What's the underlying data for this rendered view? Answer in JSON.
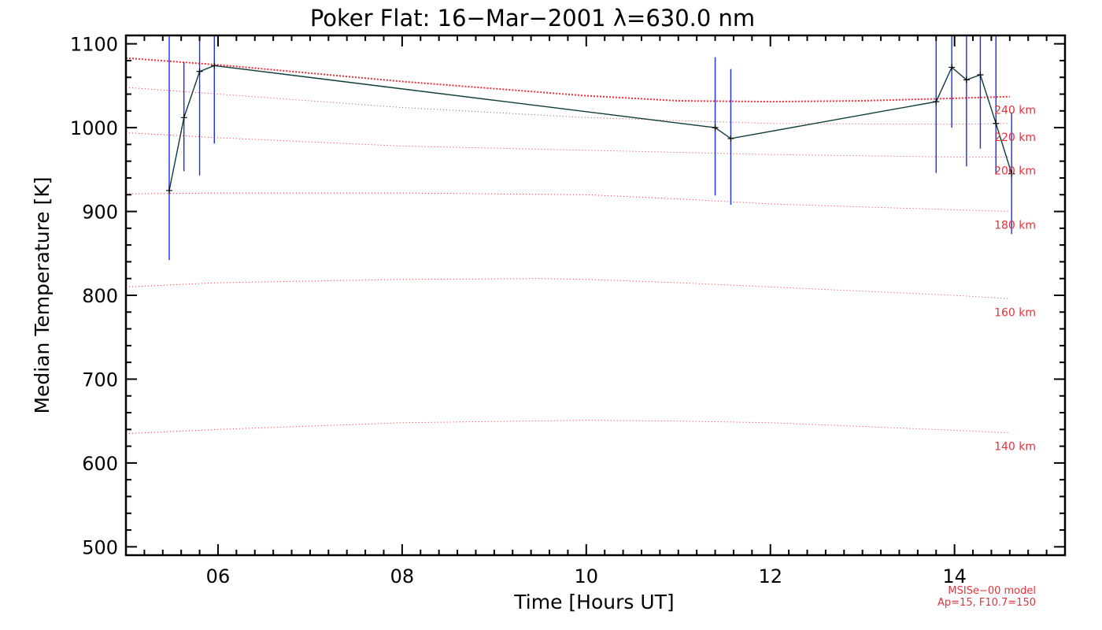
{
  "chart_data": {
    "type": "line",
    "title": "Poker Flat: 16−Mar−2001 λ=630.0 nm",
    "xlabel": "Time [Hours UT]",
    "ylabel": "Median Temperature [K]",
    "xlim": [
      5.0,
      15.2
    ],
    "ylim": [
      490,
      1110
    ],
    "x_ticks": [
      6,
      8,
      10,
      12,
      14
    ],
    "x_tick_labels": [
      "06",
      "08",
      "10",
      "12",
      "14"
    ],
    "y_ticks": [
      500,
      600,
      700,
      800,
      900,
      1000,
      1100
    ],
    "y_tick_labels": [
      "500",
      "600",
      "700",
      "800",
      "900",
      "1000",
      "1100"
    ],
    "measurements": {
      "name": "Median temperature",
      "color": "#0d3b3b",
      "error_color": "#1a2ee8",
      "x": [
        5.47,
        5.63,
        5.8,
        5.96,
        11.4,
        11.57,
        13.8,
        13.97,
        14.13,
        14.28,
        14.45,
        14.62
      ],
      "values": [
        925,
        1012,
        1067,
        1074,
        1000,
        987,
        1031,
        1072,
        1057,
        1063,
        1005,
        945
      ],
      "err_low": [
        842,
        948,
        943,
        981,
        919,
        908,
        946,
        1000,
        954,
        975,
        945,
        873
      ],
      "err_high": [
        1110,
        1078,
        1110,
        1110,
        1084,
        1070,
        1110,
        1110,
        1110,
        1110,
        1110,
        1018
      ]
    },
    "model_curves": [
      {
        "label": "240 km",
        "x": [
          5.0,
          6.0,
          8.0,
          10.0,
          11.0,
          12.0,
          13.0,
          14.0,
          14.6
        ],
        "values": [
          1083,
          1075,
          1055,
          1038,
          1032,
          1031,
          1032,
          1035,
          1037
        ]
      },
      {
        "label": "220 km",
        "x": [
          5.0,
          6.0,
          8.0,
          10.0,
          12.0,
          14.0,
          14.6
        ],
        "values": [
          1048,
          1040,
          1024,
          1012,
          1005,
          1004,
          1005
        ]
      },
      {
        "label": "200 km",
        "x": [
          5.0,
          6.0,
          8.0,
          10.0,
          12.0,
          14.0,
          14.6
        ],
        "values": [
          994,
          988,
          978,
          973,
          968,
          965,
          965
        ]
      },
      {
        "label": "180 km",
        "x": [
          5.0,
          6.0,
          8.0,
          10.0,
          11.0,
          12.0,
          14.0,
          14.6
        ],
        "values": [
          921,
          922,
          922,
          920,
          915,
          909,
          902,
          900
        ]
      },
      {
        "label": "160 km",
        "x": [
          5.0,
          6.0,
          8.0,
          9.5,
          10.0,
          11.0,
          12.0,
          14.0,
          14.6
        ],
        "values": [
          810,
          815,
          819,
          820,
          819,
          815,
          810,
          800,
          796
        ]
      },
      {
        "label": "140 km",
        "x": [
          5.0,
          6.0,
          8.0,
          10.0,
          11.0,
          12.0,
          14.0,
          14.6
        ],
        "values": [
          635,
          640,
          648,
          651,
          650,
          648,
          639,
          636
        ]
      }
    ],
    "model_color": "#e8303a",
    "model_note": [
      "MSISe−00 model",
      "Ap=15, F10.7=150"
    ]
  }
}
